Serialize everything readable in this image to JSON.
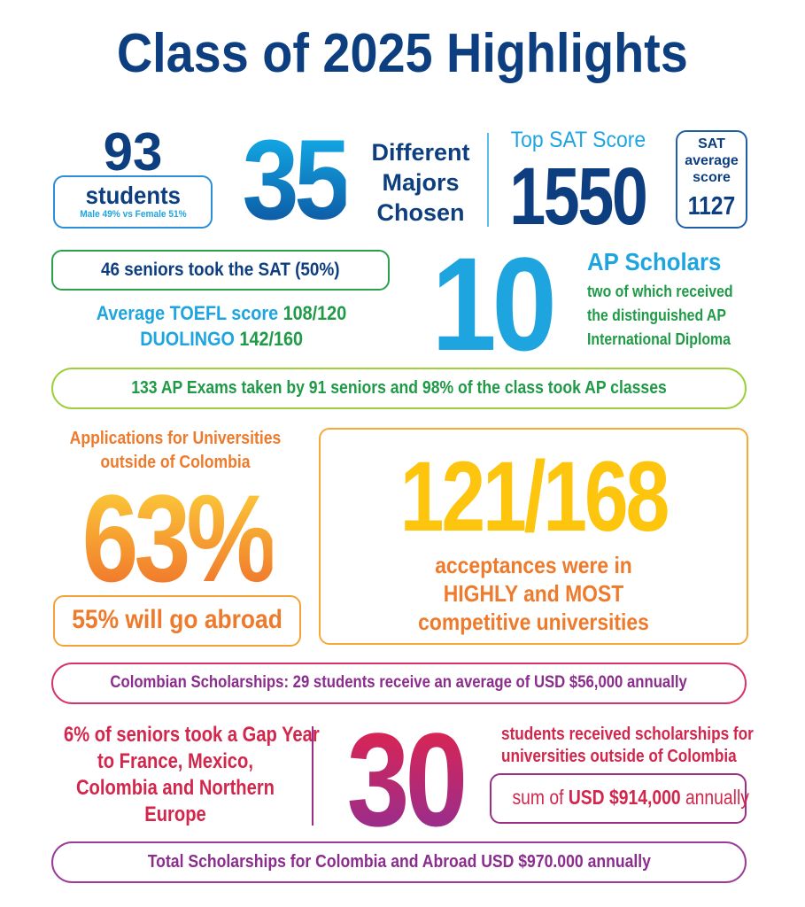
{
  "title": "Class of 2025 Highlights",
  "students": {
    "number": "93",
    "label": "students",
    "detail": "Male 49% vs Female 51%"
  },
  "majors": {
    "number": "35",
    "lines": [
      "Different",
      "Majors",
      "Chosen"
    ]
  },
  "top_sat": {
    "label": "Top SAT Score",
    "number": "1550"
  },
  "sat_average": {
    "lines": [
      "SAT",
      "average",
      "score"
    ],
    "number": "1127"
  },
  "sat_takers": "46 seniors took the SAT (50%)",
  "toefl": {
    "label": "Average TOEFL score",
    "value": "108/120"
  },
  "duolingo": {
    "label": "DUOLINGO",
    "value": "142/160"
  },
  "ap_scholars": {
    "number": "10",
    "label": "AP Scholars",
    "lines": [
      "two of which received",
      "the distinguished AP",
      "International Diploma"
    ]
  },
  "ap_exams": "133 AP Exams taken by 91 seniors and 98% of the class took AP classes",
  "applications": {
    "lines": [
      "Applications for Universities",
      "outside of Colombia"
    ],
    "percent": "63%",
    "abroad": "55% will go abroad"
  },
  "acceptances": {
    "ratio": "121/168",
    "lines": [
      "acceptances were in",
      "HIGHLY and MOST",
      "competitive universities"
    ]
  },
  "colombian_scholarships": "Colombian Scholarships: 29 students receive an average of USD $56,000 annually",
  "gap_year": {
    "lines": [
      "6% of seniors took a Gap Year",
      "to France, Mexico,",
      "Colombia and Northern",
      "Europe"
    ]
  },
  "scholarships_abroad": {
    "number": "30",
    "lines": [
      "students received scholarships for",
      "universities outside of Colombia"
    ],
    "sum_prefix": "sum of",
    "sum_value": "USD $914,000",
    "sum_suffix": "annually"
  },
  "total": "Total Scholarships for Colombia and Abroad USD $970.000 annually"
}
